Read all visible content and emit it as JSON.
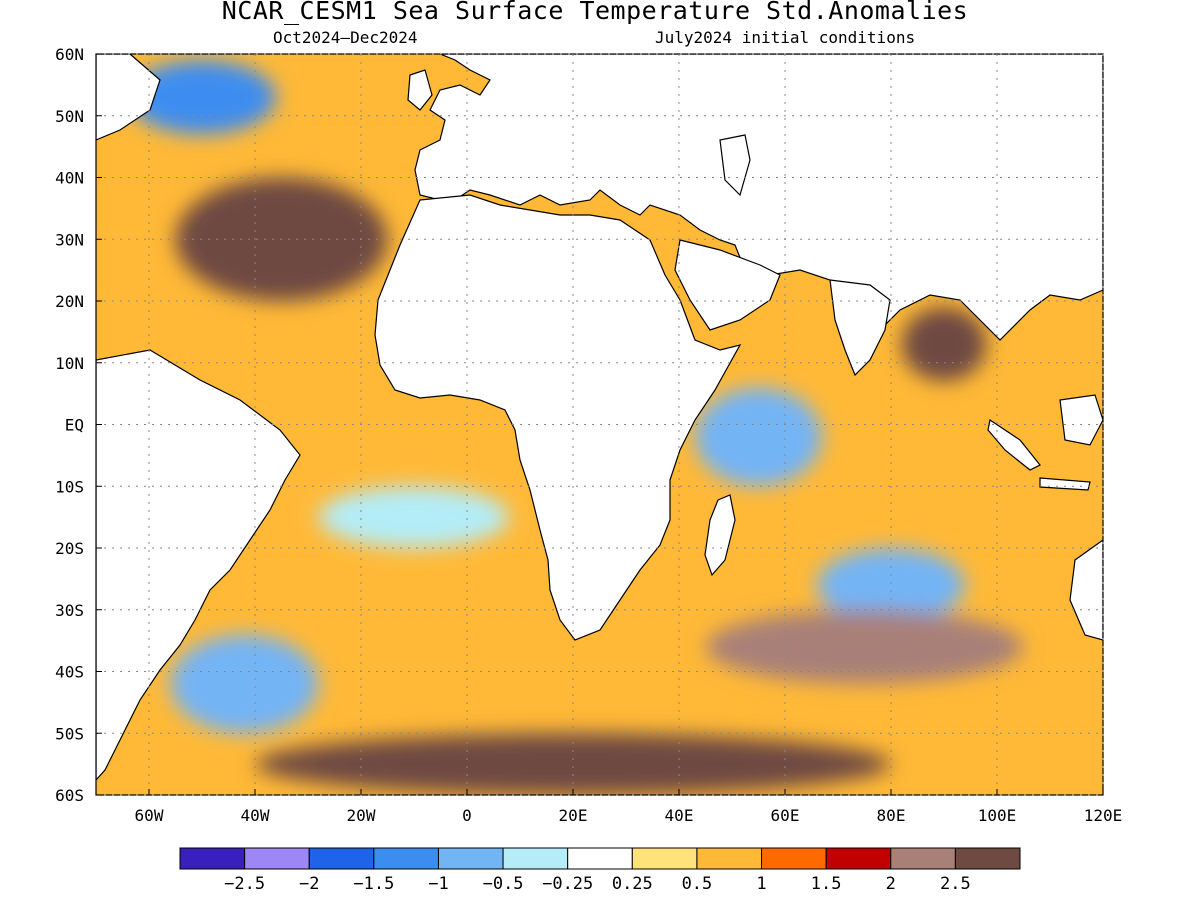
{
  "title": "NCAR_CESM1 Sea Surface Temperature Std.Anomalies",
  "subtitle_left": "Oct2024–Dec2024",
  "subtitle_right": "July2024 initial conditions",
  "map": {
    "region": "Atlantic and Indian Ocean",
    "lon_range": [
      -70,
      120
    ],
    "lat_range": [
      -60,
      60
    ],
    "x_ticks": [
      {
        "lon": -60,
        "label": "60W"
      },
      {
        "lon": -40,
        "label": "40W"
      },
      {
        "lon": -20,
        "label": "20W"
      },
      {
        "lon": 0,
        "label": "0"
      },
      {
        "lon": 20,
        "label": "20E"
      },
      {
        "lon": 40,
        "label": "40E"
      },
      {
        "lon": 60,
        "label": "60E"
      },
      {
        "lon": 80,
        "label": "80E"
      },
      {
        "lon": 100,
        "label": "100E"
      },
      {
        "lon": 120,
        "label": "120E"
      }
    ],
    "y_ticks": [
      {
        "lat": 60,
        "label": "60N"
      },
      {
        "lat": 50,
        "label": "50N"
      },
      {
        "lat": 40,
        "label": "40N"
      },
      {
        "lat": 30,
        "label": "30N"
      },
      {
        "lat": 20,
        "label": "20N"
      },
      {
        "lat": 10,
        "label": "10N"
      },
      {
        "lat": 0,
        "label": "EQ"
      },
      {
        "lat": -10,
        "label": "10S"
      },
      {
        "lat": -20,
        "label": "20S"
      },
      {
        "lat": -30,
        "label": "30S"
      },
      {
        "lat": -40,
        "label": "40S"
      },
      {
        "lat": -50,
        "label": "50S"
      },
      {
        "lat": -60,
        "label": "60S"
      }
    ],
    "gridlines": "dotted",
    "land_color": "#ffffff",
    "coastline_color": "#000000"
  },
  "colorbar": {
    "colors": [
      "#3a1fbf",
      "#9d86f5",
      "#1f64e8",
      "#3c8df0",
      "#73b4f5",
      "#b4ecf7",
      "#ffffff",
      "#ffe27a",
      "#ffb937",
      "#ff6a00",
      "#c20000",
      "#a88078",
      "#6e4a42"
    ],
    "labels": [
      "−2.5",
      "−2",
      "−1.5",
      "−1",
      "−0.5",
      "−0.25",
      "0.25",
      "0.5",
      "1",
      "1.5",
      "2",
      "2.5"
    ]
  },
  "features": [
    {
      "name": "eq-indian-cold-pool",
      "lon": 55,
      "lat": -2,
      "rx": 12,
      "ry": 8,
      "value": -1.0
    },
    {
      "name": "south-indian-cold-pool",
      "lon": 80,
      "lat": -26,
      "rx": 14,
      "ry": 6,
      "value": -1.0
    },
    {
      "name": "south-atlantic-cool-band",
      "lon": -10,
      "lat": -15,
      "rx": 18,
      "ry": 5,
      "value": -0.3
    },
    {
      "name": "nw-atlantic-cold",
      "lon": -50,
      "lat": 53,
      "rx": 14,
      "ry": 6,
      "value": -1.5
    },
    {
      "name": "sw-atlantic-cold",
      "lon": -42,
      "lat": -42,
      "rx": 14,
      "ry": 8,
      "value": -1.0
    },
    {
      "name": "north-atlantic-warm",
      "lon": -35,
      "lat": 30,
      "rx": 20,
      "ry": 10,
      "value": 2.5
    },
    {
      "name": "bay-of-bengal-warm",
      "lon": 90,
      "lat": 13,
      "rx": 8,
      "ry": 6,
      "value": 2.5
    },
    {
      "name": "southern-ocean-warm",
      "lon": 20,
      "lat": -55,
      "rx": 60,
      "ry": 5,
      "value": 2.5
    },
    {
      "name": "s-indian-warm",
      "lon": 75,
      "lat": -36,
      "rx": 30,
      "ry": 6,
      "value": 2.0
    }
  ]
}
